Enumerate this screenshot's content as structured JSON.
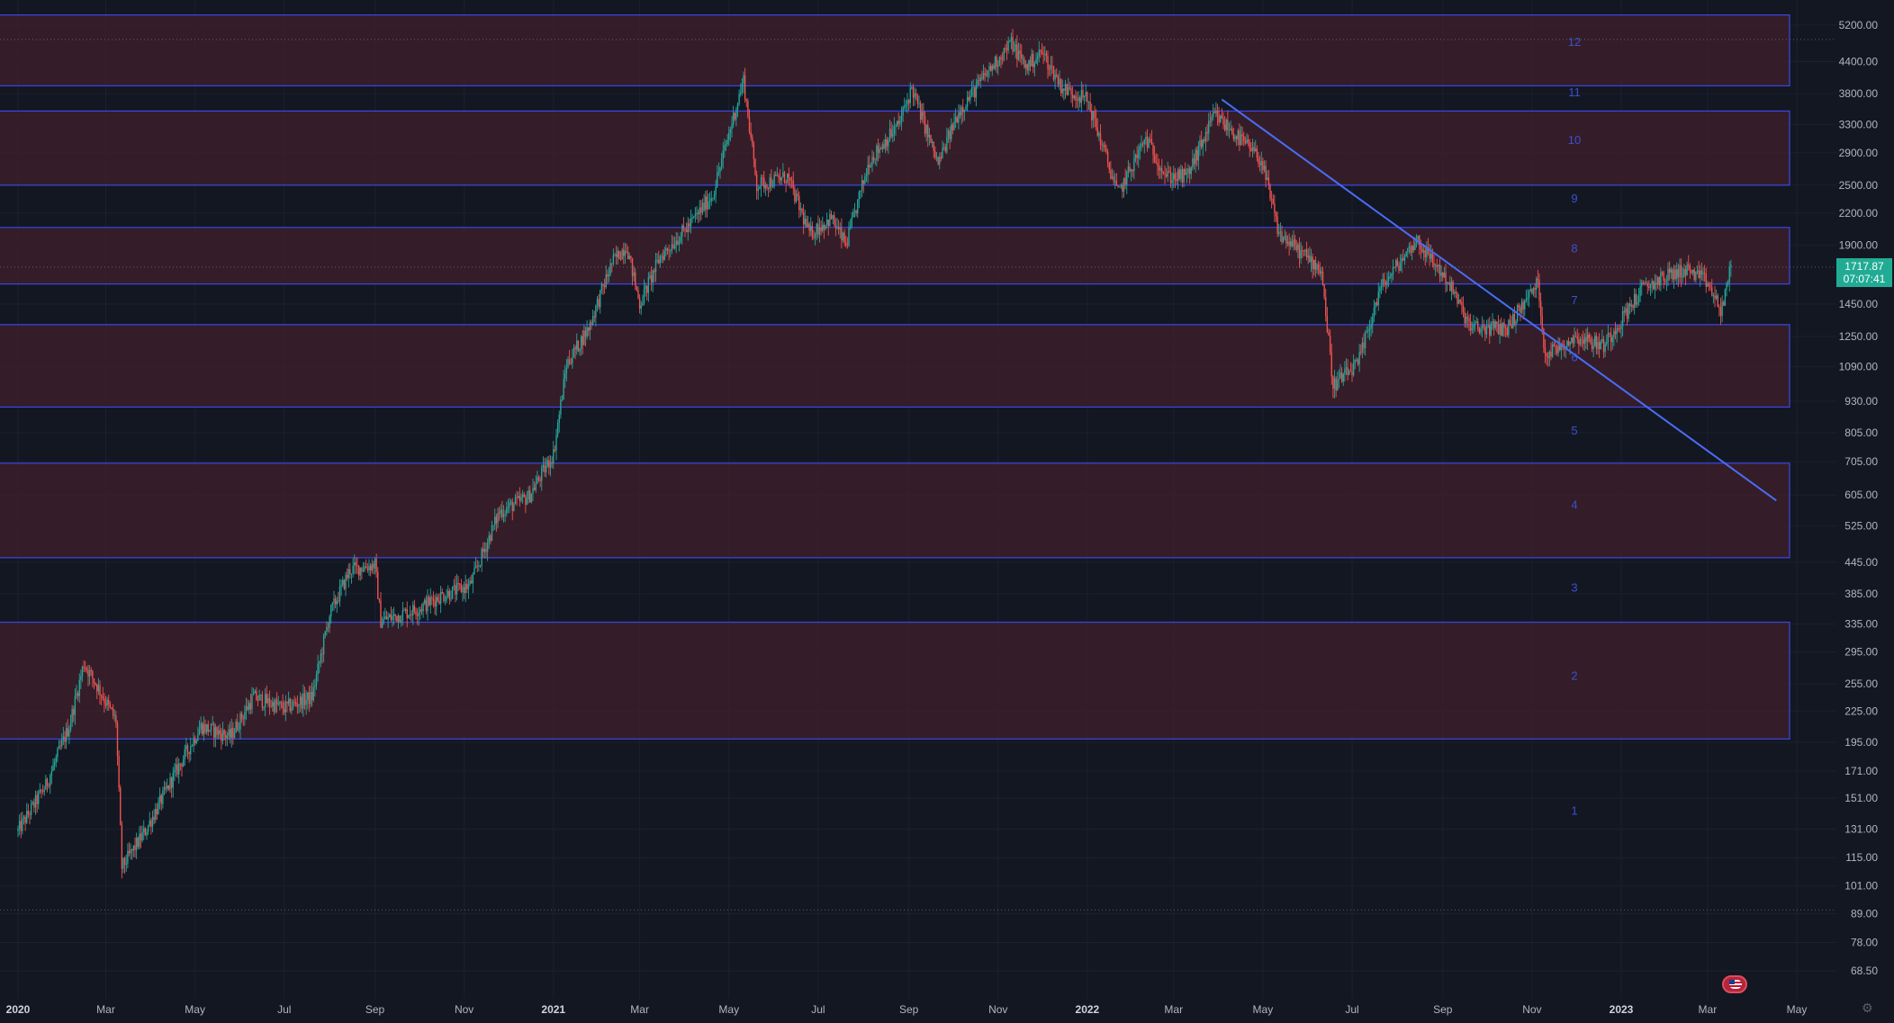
{
  "price_badge": {
    "price": "1717.87",
    "countdown": "07:07:41"
  },
  "flag_icon": "us-flag-icon",
  "settings_icon": "gear-icon",
  "colors": {
    "background": "#131722",
    "zone_fill": "#3b1f29",
    "zone_border": "#3a47e6",
    "trendline": "#4a6cf7",
    "up_candle": "#26a69a",
    "down_candle": "#ef5350",
    "axis_text": "#b2b5be",
    "zone_label": "#3d4fd1",
    "badge": "#22ab94"
  },
  "chart_data": {
    "type": "candlestick",
    "scale": "log",
    "grid": true,
    "ylim": [
      62,
      6000
    ],
    "x_range": [
      "2020-01-01",
      "2023-05-15"
    ],
    "x_ticks": [
      {
        "label": "2020",
        "date": "2020-01-01",
        "bold": true
      },
      {
        "label": "Mar",
        "date": "2020-03-01"
      },
      {
        "label": "May",
        "date": "2020-05-01"
      },
      {
        "label": "Jul",
        "date": "2020-07-01"
      },
      {
        "label": "Sep",
        "date": "2020-09-01"
      },
      {
        "label": "Nov",
        "date": "2020-11-01"
      },
      {
        "label": "2021",
        "date": "2021-01-01",
        "bold": true
      },
      {
        "label": "Mar",
        "date": "2021-03-01"
      },
      {
        "label": "May",
        "date": "2021-05-01"
      },
      {
        "label": "Jul",
        "date": "2021-07-01"
      },
      {
        "label": "Sep",
        "date": "2021-09-01"
      },
      {
        "label": "Nov",
        "date": "2021-11-01"
      },
      {
        "label": "2022",
        "date": "2022-01-01",
        "bold": true
      },
      {
        "label": "Mar",
        "date": "2022-03-01"
      },
      {
        "label": "May",
        "date": "2022-05-01"
      },
      {
        "label": "Jul",
        "date": "2022-07-01"
      },
      {
        "label": "Sep",
        "date": "2022-09-01"
      },
      {
        "label": "Nov",
        "date": "2022-11-01"
      },
      {
        "label": "2023",
        "date": "2023-01-01",
        "bold": true
      },
      {
        "label": "Mar",
        "date": "2023-03-01"
      },
      {
        "label": "May",
        "date": "2023-05-01"
      }
    ],
    "y_ticks": [
      "5200.00",
      "4400.00",
      "3800.00",
      "3300.00",
      "2900.00",
      "2500.00",
      "2200.00",
      "1900.00",
      "1450.00",
      "1250.00",
      "1090.00",
      "930.00",
      "805.00",
      "705.00",
      "605.00",
      "525.00",
      "445.00",
      "385.00",
      "335.00",
      "295.00",
      "255.00",
      "225.00",
      "195.00",
      "171.00",
      "151.00",
      "131.00",
      "115.00",
      "101.00",
      "89.00",
      "78.00",
      "68.50"
    ],
    "zones": [
      {
        "low": 198,
        "high": 338
      },
      {
        "low": 454,
        "high": 700
      },
      {
        "low": 905,
        "high": 1320
      },
      {
        "low": 1590,
        "high": 2060
      },
      {
        "low": 2500,
        "high": 3510
      },
      {
        "low": 3940,
        "high": 5450
      }
    ],
    "zone_labels": [
      {
        "label": "1",
        "price": 143,
        "date": "2022-11-30"
      },
      {
        "label": "2",
        "price": 265,
        "date": "2022-11-30"
      },
      {
        "label": "3",
        "price": 397,
        "date": "2022-11-30"
      },
      {
        "label": "4",
        "price": 580,
        "date": "2022-11-30"
      },
      {
        "label": "5",
        "price": 815,
        "date": "2022-11-30"
      },
      {
        "label": "6",
        "price": 1140,
        "date": "2022-11-30"
      },
      {
        "label": "7",
        "price": 1480,
        "date": "2022-11-30"
      },
      {
        "label": "8",
        "price": 1875,
        "date": "2022-11-30"
      },
      {
        "label": "9",
        "price": 2360,
        "date": "2022-11-30"
      },
      {
        "label": "10",
        "price": 3080,
        "date": "2022-11-30"
      },
      {
        "label": "11",
        "price": 3830,
        "date": "2022-11-30"
      },
      {
        "label": "12",
        "price": 4830,
        "date": "2022-11-30"
      }
    ],
    "trendline": {
      "from": {
        "date": "2022-04-03",
        "price": 3700
      },
      "to": {
        "date": "2023-04-17",
        "price": 590
      }
    },
    "dotted_levels": [
      {
        "price": 4870
      },
      {
        "price": 1717.87
      },
      {
        "price": 90.5
      }
    ],
    "last_price": 1717.87,
    "series": [
      {
        "date": "2020-01-01",
        "close": 130
      },
      {
        "date": "2020-01-20",
        "close": 160
      },
      {
        "date": "2020-02-05",
        "close": 210
      },
      {
        "date": "2020-02-15",
        "close": 280
      },
      {
        "date": "2020-02-25",
        "close": 250
      },
      {
        "date": "2020-03-08",
        "close": 215
      },
      {
        "date": "2020-03-12",
        "close": 110
      },
      {
        "date": "2020-03-28",
        "close": 130
      },
      {
        "date": "2020-04-20",
        "close": 175
      },
      {
        "date": "2020-05-05",
        "close": 210
      },
      {
        "date": "2020-05-25",
        "close": 200
      },
      {
        "date": "2020-06-10",
        "close": 240
      },
      {
        "date": "2020-07-01",
        "close": 228
      },
      {
        "date": "2020-07-20",
        "close": 240
      },
      {
        "date": "2020-08-01",
        "close": 350
      },
      {
        "date": "2020-08-15",
        "close": 430
      },
      {
        "date": "2020-09-01",
        "close": 440
      },
      {
        "date": "2020-09-05",
        "close": 340
      },
      {
        "date": "2020-10-01",
        "close": 360
      },
      {
        "date": "2020-10-15",
        "close": 380
      },
      {
        "date": "2020-11-05",
        "close": 400
      },
      {
        "date": "2020-11-25",
        "close": 560
      },
      {
        "date": "2020-12-15",
        "close": 600
      },
      {
        "date": "2021-01-01",
        "close": 730
      },
      {
        "date": "2021-01-10",
        "close": 1100
      },
      {
        "date": "2021-01-25",
        "close": 1300
      },
      {
        "date": "2021-02-10",
        "close": 1750
      },
      {
        "date": "2021-02-20",
        "close": 1900
      },
      {
        "date": "2021-03-01",
        "close": 1450
      },
      {
        "date": "2021-03-15",
        "close": 1800
      },
      {
        "date": "2021-04-05",
        "close": 2100
      },
      {
        "date": "2021-04-20",
        "close": 2400
      },
      {
        "date": "2021-05-05",
        "close": 3500
      },
      {
        "date": "2021-05-11",
        "close": 4050
      },
      {
        "date": "2021-05-20",
        "close": 2500
      },
      {
        "date": "2021-06-10",
        "close": 2600
      },
      {
        "date": "2021-06-25",
        "close": 2000
      },
      {
        "date": "2021-07-10",
        "close": 2150
      },
      {
        "date": "2021-07-20",
        "close": 1900
      },
      {
        "date": "2021-08-05",
        "close": 2800
      },
      {
        "date": "2021-08-25",
        "close": 3300
      },
      {
        "date": "2021-09-03",
        "close": 3900
      },
      {
        "date": "2021-09-21",
        "close": 2750
      },
      {
        "date": "2021-10-05",
        "close": 3500
      },
      {
        "date": "2021-10-25",
        "close": 4200
      },
      {
        "date": "2021-11-10",
        "close": 4800
      },
      {
        "date": "2021-11-20",
        "close": 4300
      },
      {
        "date": "2021-12-01",
        "close": 4600
      },
      {
        "date": "2021-12-15",
        "close": 3900
      },
      {
        "date": "2022-01-01",
        "close": 3700
      },
      {
        "date": "2022-01-22",
        "close": 2400
      },
      {
        "date": "2022-02-10",
        "close": 3100
      },
      {
        "date": "2022-02-24",
        "close": 2600
      },
      {
        "date": "2022-03-10",
        "close": 2600
      },
      {
        "date": "2022-03-29",
        "close": 3450
      },
      {
        "date": "2022-04-10",
        "close": 3200
      },
      {
        "date": "2022-04-30",
        "close": 2800
      },
      {
        "date": "2022-05-12",
        "close": 2000
      },
      {
        "date": "2022-06-10",
        "close": 1700
      },
      {
        "date": "2022-06-18",
        "close": 1000
      },
      {
        "date": "2022-07-05",
        "close": 1100
      },
      {
        "date": "2022-07-20",
        "close": 1550
      },
      {
        "date": "2022-08-14",
        "close": 1950
      },
      {
        "date": "2022-09-05",
        "close": 1600
      },
      {
        "date": "2022-09-20",
        "close": 1300
      },
      {
        "date": "2022-10-15",
        "close": 1300
      },
      {
        "date": "2022-11-05",
        "close": 1600
      },
      {
        "date": "2022-11-10",
        "close": 1150
      },
      {
        "date": "2022-12-01",
        "close": 1250
      },
      {
        "date": "2022-12-20",
        "close": 1200
      },
      {
        "date": "2023-01-15",
        "close": 1550
      },
      {
        "date": "2023-02-01",
        "close": 1650
      },
      {
        "date": "2023-02-15",
        "close": 1700
      },
      {
        "date": "2023-03-01",
        "close": 1600
      },
      {
        "date": "2023-03-10",
        "close": 1400
      },
      {
        "date": "2023-03-17",
        "close": 1717.87
      }
    ]
  }
}
